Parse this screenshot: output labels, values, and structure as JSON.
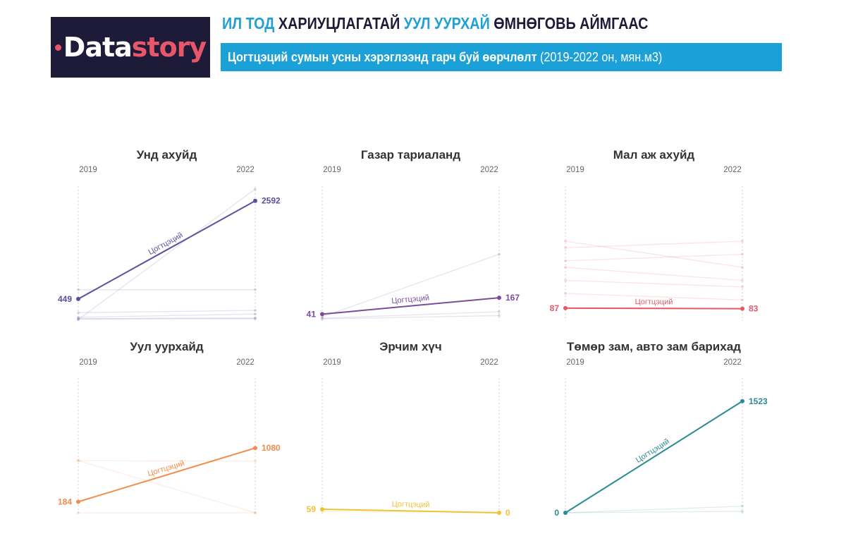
{
  "brand": {
    "logo_main": "Data",
    "logo_accent": "story"
  },
  "header": {
    "headline_hl1": "ИЛ ТОД",
    "headline_part1": " ХАРИУЦЛАГАТАЙ ",
    "headline_hl2": "УУЛ УУРХАЙ",
    "headline_part2": " ӨМНӨГОВЬ АЙМГААС",
    "subtitle_bold": "Цогтцэций сумын усны хэрэглээнд гарч буй өөрчлөлт",
    "subtitle_rest": " (2019-2022 он, мян.м3)"
  },
  "chart_data": [
    {
      "type": "line",
      "title": "Унд ахуйд",
      "x": [
        "2019",
        "2022"
      ],
      "ylim": [
        0,
        2850
      ],
      "color": "#5e4f9e",
      "highlight": {
        "name": "Цогтцэций",
        "values": [
          449,
          2592
        ],
        "labels": [
          "449",
          "2592"
        ]
      },
      "background_series": [
        [
          0,
          2850
        ],
        [
          650,
          650
        ],
        [
          150,
          200
        ],
        [
          50,
          120
        ],
        [
          20,
          30
        ],
        [
          10,
          20
        ]
      ]
    },
    {
      "type": "line",
      "title": "Газар тариаланд",
      "x": [
        "2019",
        "2022"
      ],
      "ylim": [
        0,
        1000
      ],
      "color": "#7b4c9c",
      "highlight": {
        "name": "Цогтцэций",
        "values": [
          41,
          167
        ],
        "labels": [
          "41",
          "167"
        ]
      },
      "background_series": [
        [
          20,
          500
        ],
        [
          10,
          60
        ],
        [
          5,
          30
        ]
      ]
    },
    {
      "type": "line",
      "title": "Мал аж ахуйд",
      "x": [
        "2019",
        "2022"
      ],
      "ylim": [
        0,
        1000
      ],
      "color": "#e8566a",
      "highlight": {
        "name": "Цогтцэций",
        "values": [
          87,
          83
        ],
        "labels": [
          "87",
          "83"
        ]
      },
      "background_series": [
        [
          600,
          400
        ],
        [
          550,
          600
        ],
        [
          450,
          500
        ],
        [
          400,
          300
        ],
        [
          300,
          250
        ],
        [
          200,
          150
        ]
      ]
    },
    {
      "type": "line",
      "title": "Уул уурхайд",
      "x": [
        "2019",
        "2022"
      ],
      "ylim": [
        0,
        2200
      ],
      "color": "#f28c4a",
      "highlight": {
        "name": "Цогтцэций",
        "values": [
          184,
          1080
        ],
        "labels": [
          "184",
          "1080"
        ]
      },
      "background_series": [
        [
          870,
          0
        ],
        [
          870,
          860
        ],
        [
          0,
          0
        ]
      ]
    },
    {
      "type": "line",
      "title": "Эрчим хүч",
      "x": [
        "2019",
        "2022"
      ],
      "ylim": [
        0,
        2200
      ],
      "color": "#f2c233",
      "highlight": {
        "name": "Цогтцэций",
        "values": [
          59,
          0
        ],
        "labels": [
          "59",
          "0"
        ]
      },
      "background_series": [
        [
          20,
          10
        ]
      ]
    },
    {
      "type": "line",
      "title": "Төмөр зам, авто зам барихад",
      "x": [
        "2019",
        "2022"
      ],
      "ylim": [
        0,
        1800
      ],
      "color": "#2a8a95",
      "highlight": {
        "name": "Цогтцэций",
        "values": [
          0,
          1523
        ],
        "labels": [
          "0",
          "1523"
        ]
      },
      "background_series": [
        [
          0,
          90
        ],
        [
          0,
          20
        ]
      ]
    }
  ]
}
